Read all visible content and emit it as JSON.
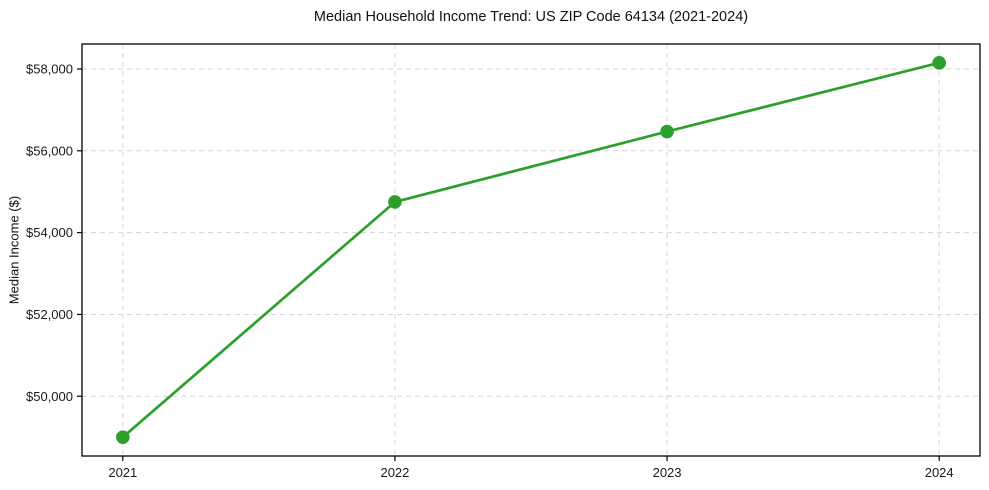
{
  "figure": {
    "background": "#ffffff"
  },
  "chart_data": {
    "type": "line",
    "title": "Median Household Income Trend: US ZIP Code 64134 (2021-2024)",
    "xlabel": "",
    "ylabel": "Median Income ($)",
    "x": [
      2021,
      2022,
      2023,
      2024
    ],
    "xtick_labels": [
      "2021",
      "2022",
      "2023",
      "2024"
    ],
    "values": [
      49000,
      54750,
      56470,
      58150
    ],
    "yticks": [
      50000,
      52000,
      54000,
      56000,
      58000
    ],
    "ytick_labels": [
      "$50,000",
      "$52,000",
      "$54,000",
      "$56,000",
      "$58,000"
    ],
    "xlim": [
      2020.85,
      2024.15
    ],
    "ylim": [
      48540,
      58610
    ],
    "grid": "dashed",
    "legend": "none",
    "marker": "circle",
    "colors": {
      "line": "#2ca02c",
      "marker": "#2ca02c",
      "grid": "#d6d6d6",
      "axis": "#000000",
      "text": "#1a1a1a"
    }
  }
}
